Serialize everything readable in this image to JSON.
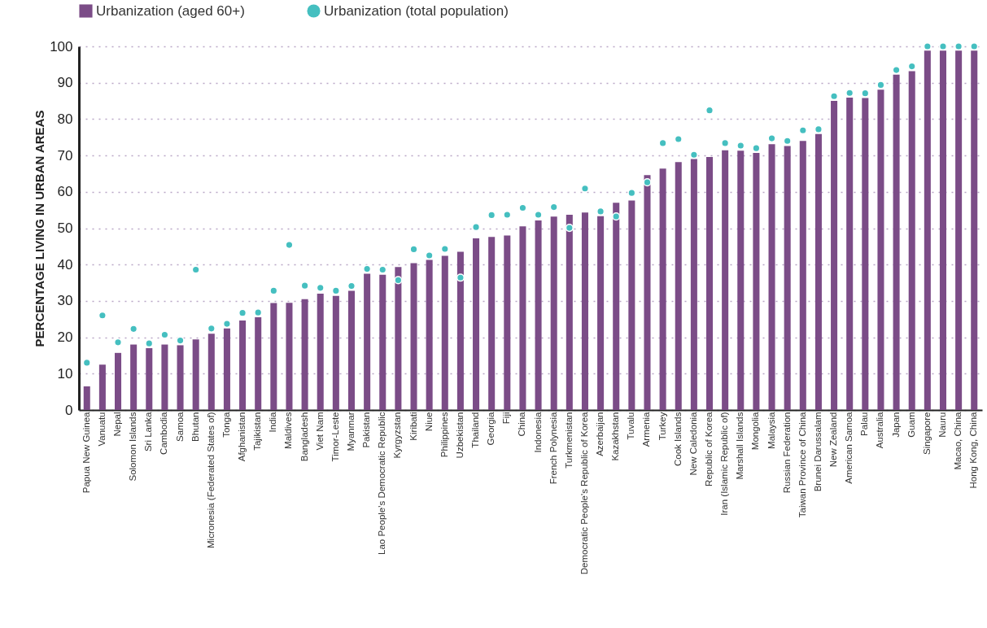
{
  "chart_data": {
    "type": "bar",
    "ylabel": "PERCENTAGE LIVING IN URBAN AREAS",
    "categories": [
      "Papua New Guinea",
      "Vanuatu",
      "Nepal",
      "Solomon Islands",
      "Sri Lanka",
      "Cambodia",
      "Samoa",
      "Bhutan",
      "Micronesia (Federated States of)",
      "Tonga",
      "Afghanistan",
      "Tajikistan",
      "India",
      "Maldives",
      "Bangladesh",
      "Viet Nam",
      "Timor-Leste",
      "Myanmar",
      "Pakistan",
      "Lao People's Democratic Republic",
      "Kyrgyzstan",
      "Kiribati",
      "Niue",
      "Philippines",
      "Uzbekistan",
      "Thailand",
      "Georgia",
      "Fiji",
      "China",
      "Indonesia",
      "French Polynesia",
      "Turkmenistan",
      "Democratic People's Republic of Korea",
      "Azerbaijan",
      "Kazakhstan",
      "Tuvalu",
      "Armenia",
      "Turkey",
      "Cook Islands",
      "New Caledonia",
      "Republic of Korea",
      "Iran (Islamic Republic of)",
      "Marshall Islands",
      "Mongolia",
      "Malaysia",
      "Russian Federation",
      "Taiwan Province of China",
      "Brunei Darussalam",
      "New Zealand",
      "American Samoa",
      "Palau",
      "Australia",
      "Japan",
      "Guam",
      "Singapore",
      "Nauru",
      "Macao, China",
      "Hong Kong, China"
    ],
    "series": [
      {
        "name": "Urbanization (aged 60+)",
        "color": "#7b4c87",
        "values": [
          6.5,
          12.5,
          15.7,
          18,
          17,
          18,
          17.8,
          19.4,
          21,
          22.4,
          24.6,
          25.5,
          29.4,
          29.5,
          30.5,
          32,
          31.4,
          32.8,
          37.5,
          37.2,
          39.3,
          40.4,
          41.3,
          42.4,
          43.5,
          47.2,
          47.6,
          48,
          50.5,
          52.1,
          53.2,
          53.7,
          54.3,
          53.3,
          57,
          57.6,
          64.6,
          66.4,
          68.2,
          69,
          69.6,
          71.4,
          71.3,
          70.7,
          73.1,
          72.6,
          74,
          75.9,
          85,
          85.9,
          85.8,
          88.1,
          92.2,
          93.2,
          98.8,
          98.8,
          98.8,
          98.8
        ]
      },
      {
        "name": "Urbanization (total population)",
        "type": "scatter",
        "color": "#45bfc0",
        "values": [
          13,
          26,
          18.6,
          22.3,
          18.3,
          20.7,
          19.1,
          38.6,
          22.4,
          23.7,
          26.7,
          26.8,
          32.8,
          45.4,
          34.2,
          33.6,
          32.8,
          34.1,
          38.8,
          38.6,
          35.7,
          44.2,
          42.5,
          44.3,
          36.4,
          50.3,
          53.6,
          53.7,
          55.6,
          53.7,
          55.8,
          50.1,
          60.9,
          54.6,
          53.2,
          59.7,
          62.6,
          73.4,
          74.5,
          70.2,
          82.4,
          73.4,
          72.7,
          72,
          74.7,
          74,
          76.9,
          77.2,
          86.3,
          87.2,
          87.1,
          89.4,
          93.5,
          94.5,
          100,
          100,
          100,
          100
        ]
      }
    ],
    "ylim": [
      0,
      100
    ],
    "yticks": [
      0,
      10,
      20,
      30,
      40,
      50,
      60,
      70,
      80,
      90,
      100
    ],
    "grid": "y",
    "legend": "top left",
    "marker": "circle"
  }
}
